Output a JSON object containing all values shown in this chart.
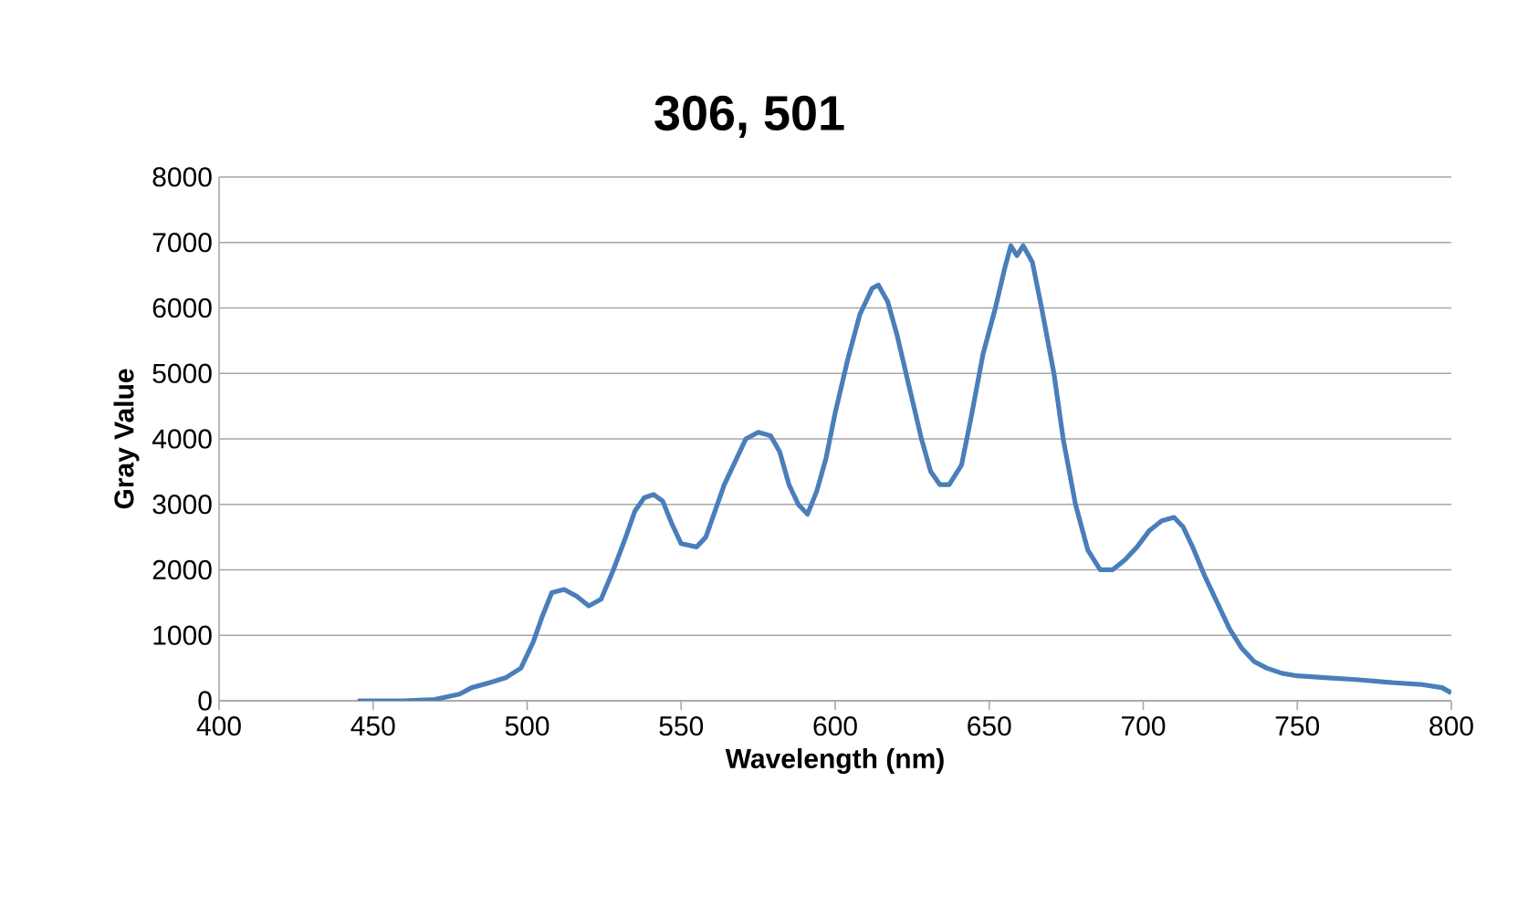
{
  "chart_data": {
    "type": "line",
    "title": "306, 501",
    "xlabel": "Wavelength (nm)",
    "ylabel": "Gray Value",
    "xlim": [
      400,
      800
    ],
    "xticks": [
      400,
      450,
      500,
      550,
      600,
      650,
      700,
      750,
      800
    ],
    "ylim": [
      0,
      8000
    ],
    "yticks": [
      0,
      1000,
      2000,
      3000,
      4000,
      5000,
      6000,
      7000,
      8000
    ],
    "grid": "y",
    "marker": "none",
    "line_style": "solid",
    "series": [
      {
        "color": "#4a7ebb",
        "x": [
          445,
          460,
          470,
          478,
          482,
          488,
          493,
          498,
          502,
          505,
          508,
          512,
          516,
          520,
          524,
          528,
          532,
          535,
          538,
          541,
          544,
          547,
          550,
          555,
          558,
          561,
          564,
          567,
          571,
          575,
          579,
          582,
          585,
          588,
          591,
          594,
          597,
          600,
          604,
          608,
          612,
          614,
          617,
          620,
          624,
          628,
          631,
          634,
          637,
          641,
          644,
          648,
          652,
          655,
          657,
          659,
          661,
          664,
          667,
          671,
          674,
          678,
          682,
          686,
          690,
          694,
          698,
          702,
          706,
          710,
          713,
          716,
          720,
          724,
          728,
          732,
          736,
          740,
          745,
          750,
          760,
          770,
          780,
          790,
          797,
          800
        ],
        "values": [
          0,
          0,
          20,
          100,
          200,
          280,
          350,
          500,
          900,
          1300,
          1650,
          1700,
          1600,
          1450,
          1550,
          2000,
          2500,
          2900,
          3100,
          3150,
          3050,
          2700,
          2400,
          2350,
          2500,
          2900,
          3300,
          3600,
          4000,
          4100,
          4050,
          3800,
          3300,
          3000,
          2850,
          3200,
          3700,
          4400,
          5200,
          5900,
          6300,
          6350,
          6100,
          5600,
          4800,
          4000,
          3500,
          3300,
          3300,
          3600,
          4300,
          5300,
          6000,
          6600,
          6950,
          6800,
          6950,
          6700,
          6000,
          5000,
          4000,
          3000,
          2300,
          2000,
          2000,
          2150,
          2350,
          2600,
          2750,
          2800,
          2650,
          2350,
          1900,
          1500,
          1100,
          800,
          600,
          500,
          420,
          380,
          350,
          320,
          280,
          250,
          200,
          120
        ]
      }
    ]
  }
}
